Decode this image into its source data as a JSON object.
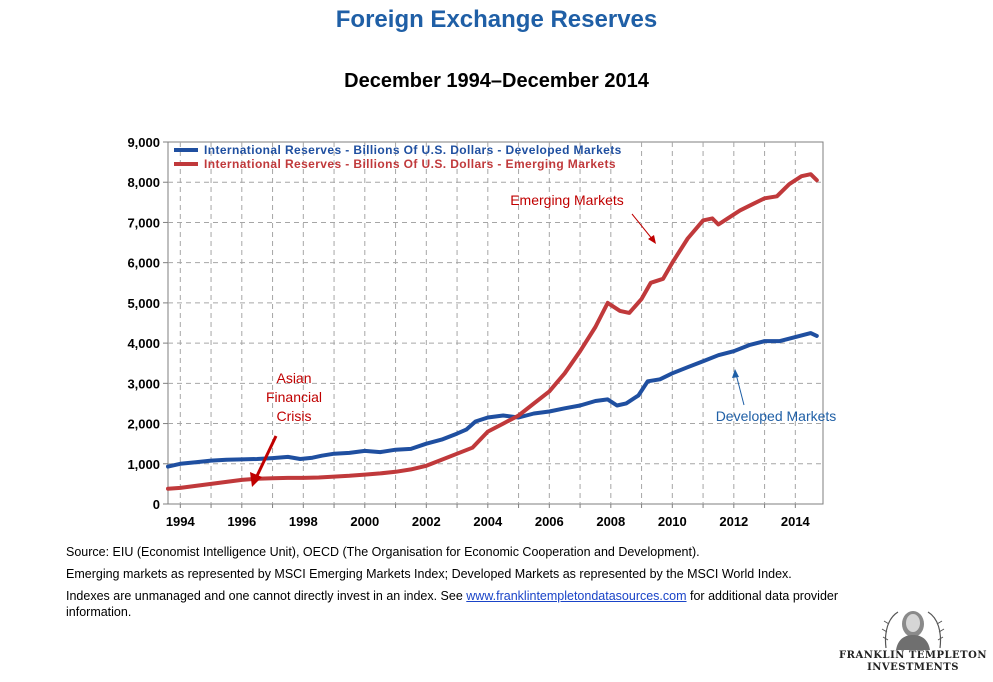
{
  "header": {
    "title": "Foreign Exchange Reserves",
    "subtitle": "December 1994–December 2014"
  },
  "chart_data": {
    "type": "line",
    "title": "Foreign Exchange Reserves",
    "subtitle": "December 1994–December 2014",
    "xlabel": "",
    "ylabel": "",
    "xlim": [
      1993.6,
      2014.9
    ],
    "ylim": [
      0,
      9000
    ],
    "grid": true,
    "legend_position": "top-left",
    "y_ticks": [
      0,
      1000,
      2000,
      3000,
      4000,
      5000,
      6000,
      7000,
      8000,
      9000
    ],
    "y_tick_labels": [
      "0",
      "1,000",
      "2,000",
      "3,000",
      "4,000",
      "5,000",
      "6,000",
      "7,000",
      "8,000",
      "9,000"
    ],
    "x_ticks": [
      1994,
      1996,
      1998,
      2000,
      2002,
      2004,
      2006,
      2008,
      2010,
      2012,
      2014
    ],
    "x_tick_labels": [
      "1994",
      "1996",
      "1998",
      "2000",
      "2002",
      "2004",
      "2006",
      "2008",
      "2010",
      "2012",
      "2014"
    ],
    "series": [
      {
        "name": "International Reserves - Billions Of U.S. Dollars - Developed Markets",
        "color": "#1f4fa0",
        "x": [
          1993.6,
          1994.0,
          1994.5,
          1995.0,
          1995.5,
          1996.0,
          1996.5,
          1997.0,
          1997.5,
          1997.9,
          1998.3,
          1998.6,
          1999.0,
          1999.5,
          2000.0,
          2000.5,
          2001.0,
          2001.5,
          2002.0,
          2002.5,
          2003.0,
          2003.3,
          2003.6,
          2004.0,
          2004.5,
          2005.0,
          2005.5,
          2006.0,
          2006.5,
          2007.0,
          2007.5,
          2007.9,
          2008.2,
          2008.5,
          2008.9,
          2009.2,
          2009.6,
          2010.0,
          2010.5,
          2011.0,
          2011.5,
          2012.0,
          2012.5,
          2013.0,
          2013.5,
          2014.0,
          2014.5,
          2014.7
        ],
        "values": [
          930,
          1000,
          1040,
          1080,
          1100,
          1110,
          1120,
          1140,
          1170,
          1120,
          1150,
          1200,
          1250,
          1270,
          1320,
          1290,
          1350,
          1370,
          1500,
          1600,
          1750,
          1850,
          2050,
          2150,
          2200,
          2150,
          2250,
          2300,
          2380,
          2450,
          2560,
          2600,
          2450,
          2500,
          2700,
          3050,
          3100,
          3250,
          3400,
          3550,
          3700,
          3800,
          3950,
          4050,
          4050,
          4150,
          4250,
          4180
        ]
      },
      {
        "name": "International Reserves - Billions Of U.S. Dollars - Emerging Markets",
        "color": "#c0393b",
        "x": [
          1993.6,
          1994.0,
          1994.5,
          1995.0,
          1995.5,
          1996.0,
          1996.5,
          1997.0,
          1997.5,
          1998.0,
          1998.5,
          1999.0,
          1999.5,
          2000.0,
          2000.5,
          2001.0,
          2001.5,
          2002.0,
          2002.5,
          2003.0,
          2003.5,
          2004.0,
          2004.5,
          2005.0,
          2005.5,
          2006.0,
          2006.5,
          2007.0,
          2007.5,
          2007.9,
          2008.3,
          2008.6,
          2009.0,
          2009.3,
          2009.7,
          2010.0,
          2010.5,
          2011.0,
          2011.3,
          2011.5,
          2011.8,
          2012.2,
          2012.6,
          2013.0,
          2013.4,
          2013.8,
          2014.2,
          2014.5,
          2014.7
        ],
        "values": [
          380,
          400,
          450,
          500,
          550,
          600,
          630,
          640,
          650,
          650,
          660,
          680,
          700,
          730,
          760,
          800,
          860,
          950,
          1100,
          1250,
          1400,
          1800,
          2000,
          2200,
          2500,
          2800,
          3250,
          3800,
          4400,
          5000,
          4800,
          4750,
          5100,
          5500,
          5600,
          6000,
          6600,
          7050,
          7100,
          6950,
          7100,
          7300,
          7450,
          7600,
          7650,
          7950,
          8150,
          8200,
          8050
        ]
      }
    ],
    "annotations": [
      {
        "text_lines": [
          "Asian",
          "Financial",
          "Crisis"
        ],
        "color": "#c00000",
        "target_x": 1996.2,
        "target_y": 600
      },
      {
        "text": "Emerging Markets",
        "color": "#c00000",
        "target_x": 2009.4,
        "target_y": 6500
      },
      {
        "text": "Developed Markets",
        "color": "#1f5fa6",
        "target_x": 2011.8,
        "target_y": 3300
      }
    ]
  },
  "footer": {
    "source": "Source: EIU (Economist Intelligence Unit), OECD (The Organisation for Economic Cooperation and Development).",
    "definitions": "Emerging markets as represented by MSCI Emerging Markets Index; Developed Markets as represented by the MSCI World Index.",
    "disclaimer_prefix": "Indexes are unmanaged and one cannot directly invest in an index. See ",
    "link_text": "www.franklintempletondatasources.com",
    "disclaimer_suffix": " for additional data provider information."
  },
  "logo": {
    "line1": "FRANKLIN TEMPLETON",
    "line2": "INVESTMENTS"
  }
}
